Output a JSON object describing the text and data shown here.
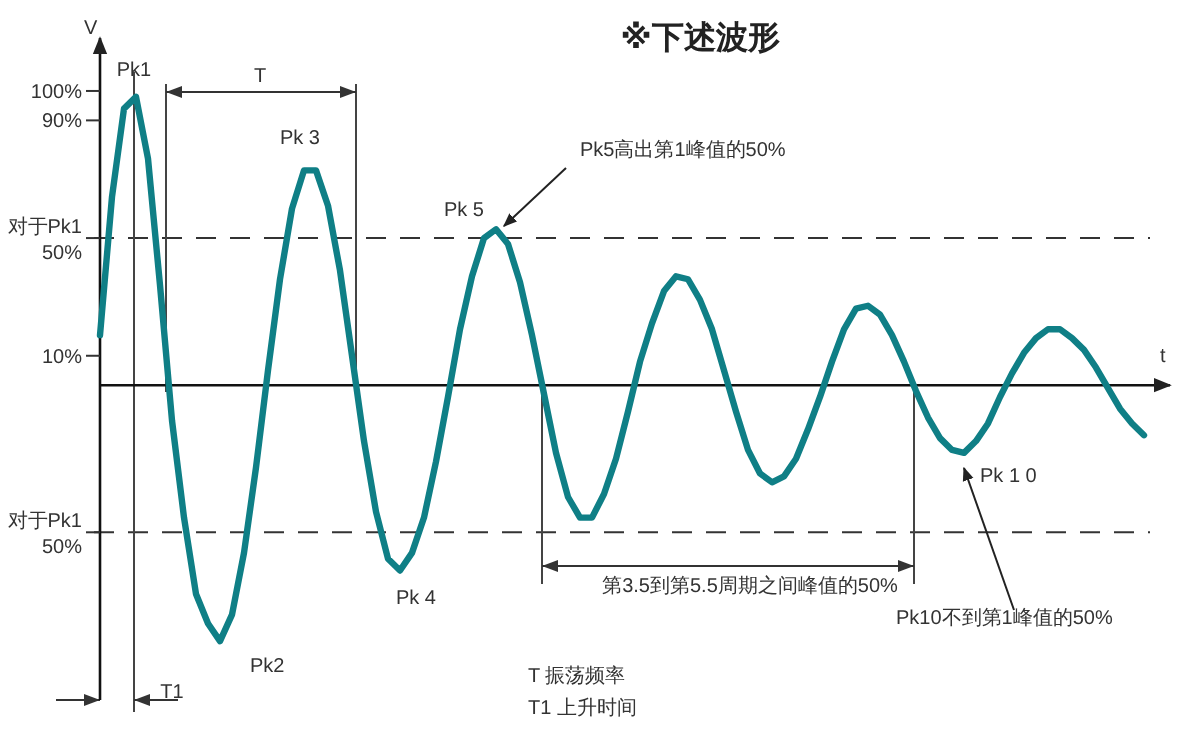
{
  "chart_data": {
    "type": "line",
    "title": "※下述波形",
    "ylabel": "V",
    "categories": [
      null,
      null,
      null,
      null,
      null,
      null,
      null,
      null,
      null,
      null,
      null,
      null,
      null,
      null,
      null,
      null,
      null,
      null,
      null,
      null,
      null,
      null,
      null,
      null,
      null,
      null,
      null,
      null,
      null,
      null,
      null,
      null,
      null,
      null,
      null,
      null,
      null,
      null,
      null,
      null,
      null,
      null,
      null,
      null,
      null,
      null,
      null,
      null,
      null,
      null,
      null,
      null,
      null,
      null,
      null,
      null,
      null,
      null,
      null,
      null,
      null,
      null,
      null,
      null,
      null,
      null,
      null,
      null,
      null,
      null,
      null,
      null,
      null,
      null,
      null,
      null,
      null,
      null,
      null,
      null,
      null,
      null,
      null,
      null,
      null,
      null,
      null,
      null
    ],
    "ylim": [
      -107,
      118
    ],
    "yticks": [
      {
        "value": 100,
        "label": "100%"
      },
      {
        "value": 90,
        "label": "90%"
      },
      {
        "value": 50,
        "label": "对于Pk1\n50%"
      },
      {
        "value": 10,
        "label": "10%"
      },
      {
        "value": -50,
        "label": "对于Pk1\n50%"
      }
    ],
    "tick_labels": "y",
    "line_style": "solid",
    "series": [
      {
        "color": "#0f7f86",
        "values": [
          17,
          64,
          94,
          98,
          77,
          34,
          -12,
          -45,
          -71,
          -81,
          -87,
          -78,
          -57,
          -28,
          5,
          36,
          60,
          73,
          73,
          61,
          39,
          10,
          -19,
          -43,
          -59,
          -63,
          -57,
          -45,
          -26,
          -4,
          19,
          37,
          50,
          53,
          48,
          35,
          17,
          -3,
          -23,
          -38,
          -45,
          -45,
          -37,
          -25,
          -9,
          8,
          21,
          32,
          37,
          36,
          29,
          19,
          5,
          -9,
          -22,
          -30,
          -33,
          -31,
          -25,
          -15,
          -4,
          8,
          19,
          26,
          27,
          24,
          17,
          8,
          -2,
          -11,
          -18,
          -22,
          -23,
          -19,
          -13,
          -4,
          4,
          11,
          16,
          19,
          19,
          16,
          12,
          6,
          -1,
          -8,
          -13,
          -17
        ]
      }
    ],
    "ref_lines": [
      {
        "axis": "y",
        "value": 50,
        "line_style": "dashed"
      },
      {
        "axis": "y",
        "value": -50,
        "line_style": "dashed"
      }
    ],
    "annotations": [
      "Pk1",
      "Pk2",
      "Pk 3",
      "Pk 4",
      "Pk 5",
      "Pk5高出第1峰值的50%",
      "Pk 1 0",
      "Pk10不到第1峰值的50%",
      "T",
      "T1",
      "第3.5到第5.5周期之间峰值的50%",
      "T 振荡频率",
      "T1  上升时间",
      "t"
    ]
  }
}
